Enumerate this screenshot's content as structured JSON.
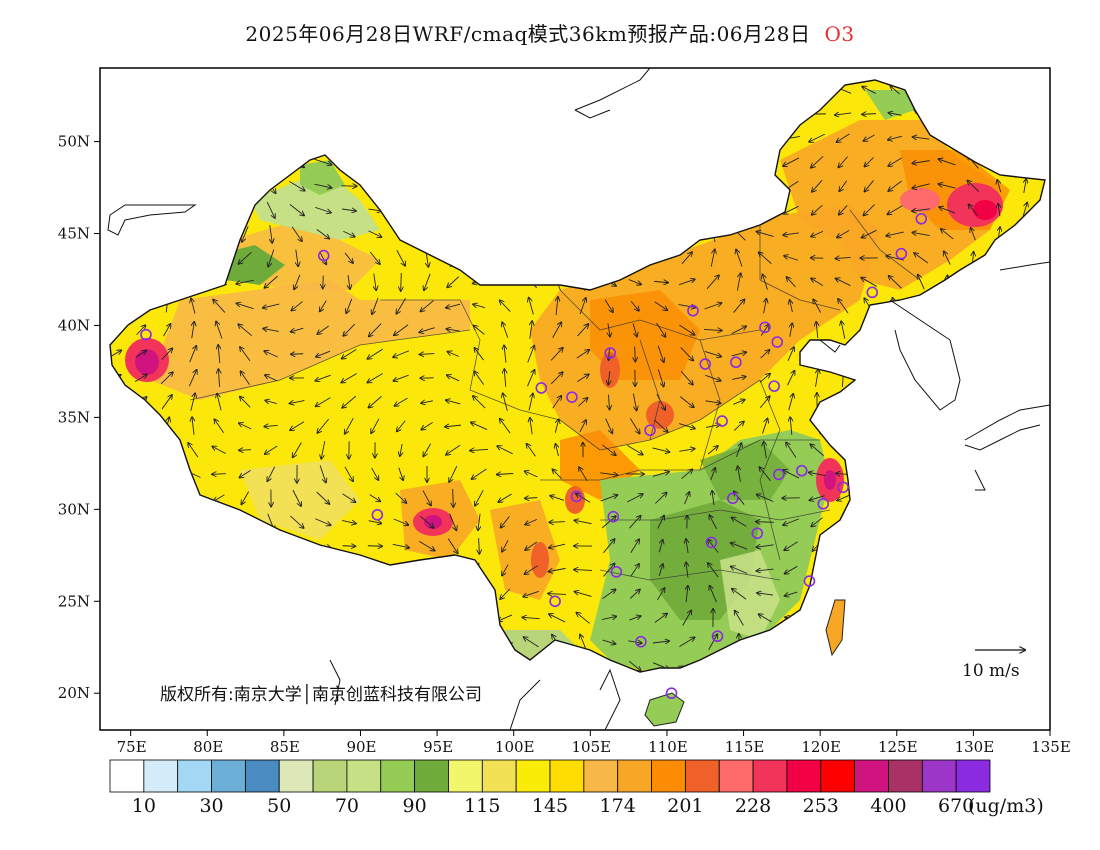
{
  "title": "2025年06月28日WRF/cmaq模式36km预报产品:06月28日",
  "species": "O3",
  "copyright": "版权所有:南京大学│南京创蓝科技有限公司",
  "scale_label": "10 m/s",
  "lon_ticks": [
    "75E",
    "80E",
    "85E",
    "90E",
    "95E",
    "100E",
    "105E",
    "110E",
    "115E",
    "120E",
    "125E",
    "130E",
    "135E"
  ],
  "lat_ticks": [
    "50N",
    "45N",
    "40N",
    "35N",
    "30N",
    "25N",
    "20N"
  ],
  "legend": {
    "colors": [
      "#ffffff",
      "#d4ecfa",
      "#a3d8f5",
      "#6baed6",
      "#4a8cc2",
      "#dce8b8",
      "#b9d57a",
      "#c5e085",
      "#95cc55",
      "#6fab3a",
      "#f2f66a",
      "#f2e055",
      "#fbec07",
      "#ffdd00",
      "#f8b848",
      "#f8a625",
      "#fb8c04",
      "#f0612a",
      "#ff6a6a",
      "#f3345a",
      "#f10045",
      "#ff0000",
      "#d0137f",
      "#a83266",
      "#9b36c9",
      "#8a2be2"
    ],
    "labels": [
      "10",
      "30",
      "50",
      "70",
      "90",
      "115",
      "145",
      "174",
      "201",
      "228",
      "253",
      "400",
      "670"
    ],
    "unit": "(ug/m3)"
  },
  "sites": [
    [
      87.6,
      43.8
    ],
    [
      76.0,
      39.5
    ],
    [
      91.1,
      29.7
    ],
    [
      101.8,
      36.6
    ],
    [
      103.8,
      36.1
    ],
    [
      106.3,
      38.5
    ],
    [
      104.1,
      30.7
    ],
    [
      106.5,
      29.6
    ],
    [
      106.7,
      26.6
    ],
    [
      102.7,
      25.0
    ],
    [
      108.3,
      22.8
    ],
    [
      110.3,
      20.0
    ],
    [
      111.7,
      40.8
    ],
    [
      112.5,
      37.9
    ],
    [
      114.5,
      38.0
    ],
    [
      116.4,
      39.9
    ],
    [
      117.2,
      39.1
    ],
    [
      117.0,
      36.7
    ],
    [
      113.6,
      34.8
    ],
    [
      108.9,
      34.3
    ],
    [
      114.3,
      30.6
    ],
    [
      112.9,
      28.2
    ],
    [
      115.9,
      28.7
    ],
    [
      117.3,
      31.9
    ],
    [
      118.8,
      32.1
    ],
    [
      120.2,
      30.3
    ],
    [
      121.5,
      31.2
    ],
    [
      119.3,
      26.1
    ],
    [
      113.3,
      23.1
    ],
    [
      123.4,
      41.8
    ],
    [
      125.3,
      43.9
    ],
    [
      126.6,
      45.8
    ]
  ]
}
